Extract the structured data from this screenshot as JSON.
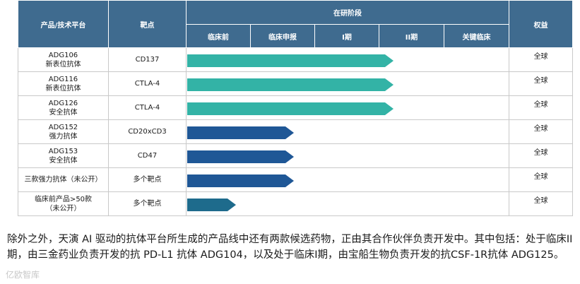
{
  "table": {
    "header": {
      "product": "产品/技术平台",
      "target": "靶点",
      "stage_group": "在研阶段",
      "rights": "权益",
      "stages": [
        "临床前",
        "临床申报",
        "I期",
        "II期",
        "关键临床"
      ]
    },
    "rows": [
      {
        "name_line1": "ADG106",
        "name_line2": "新表位抗体",
        "target": "CD137",
        "rights": "全球",
        "progress_stages": 3.2,
        "color": "#33b3a6"
      },
      {
        "name_line1": "ADG116",
        "name_line2": "新表位抗体",
        "target": "CTLA-4",
        "rights": "全球",
        "progress_stages": 3.2,
        "color": "#33b3a6"
      },
      {
        "name_line1": "ADG126",
        "name_line2": "安全抗体",
        "target": "CTLA-4",
        "rights": "全球",
        "progress_stages": 3.2,
        "color": "#33b3a6"
      },
      {
        "name_line1": "ADG152",
        "name_line2": "强力抗体",
        "target": "CD20xCD3",
        "rights": "全球",
        "progress_stages": 1.65,
        "color": "#1f5796"
      },
      {
        "name_line1": "ADG153",
        "name_line2": "安全抗体",
        "target": "CD47",
        "rights": "全球",
        "progress_stages": 1.65,
        "color": "#1f5796"
      },
      {
        "name_line1": "三款强力抗体（未公开）",
        "name_line2": "",
        "target": "多个靶点",
        "rights": "全球",
        "progress_stages": 1.65,
        "color": "#1f5796"
      },
      {
        "name_line1": "临床前产品>50款",
        "name_line2": "（未公开）",
        "target": "多个靶点",
        "rights": "全球",
        "progress_stages": 0.75,
        "color": "#1e6b8c"
      }
    ]
  },
  "paragraph": "除外之外，天演 AI 驱动的抗体平台所生成的产品线中还有两款候选药物，正由其合作伙伴负责开发中。其中包括：处于临床II期，由三金药业负责开发的抗 PD-L1 抗体 ADG104，以及处于临床I期，由宝船生物负责开发的抗CSF-1R抗体 ADG125。",
  "watermark": "亿欧智库"
}
